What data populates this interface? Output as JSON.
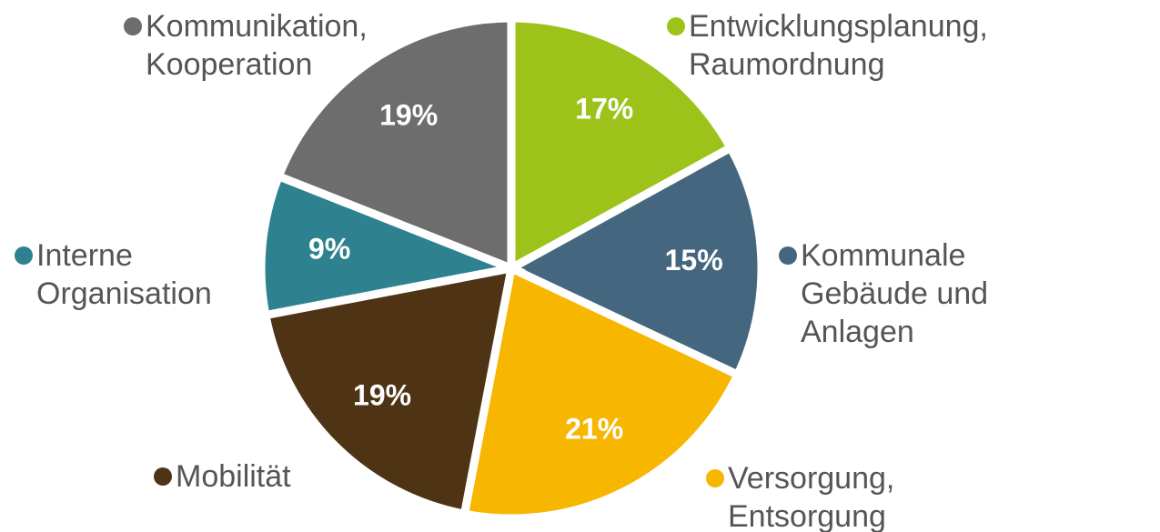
{
  "chart_data": {
    "type": "pie",
    "categories": [
      "Entwicklungsplanung, Raumordnung",
      "Kommunale Gebäude und Anlagen",
      "Versorgung, Entsorgung",
      "Mobilität",
      "Interne Organisation",
      "Kommunikation, Kooperation"
    ],
    "values": [
      17,
      15,
      21,
      19,
      9,
      19
    ],
    "value_labels": [
      "17%",
      "15%",
      "21%",
      "19%",
      "9%",
      "19%"
    ],
    "colors": [
      "#9dc31a",
      "#44677f",
      "#f7b600",
      "#4e3315",
      "#2e8290",
      "#6e6d6d"
    ]
  }
}
